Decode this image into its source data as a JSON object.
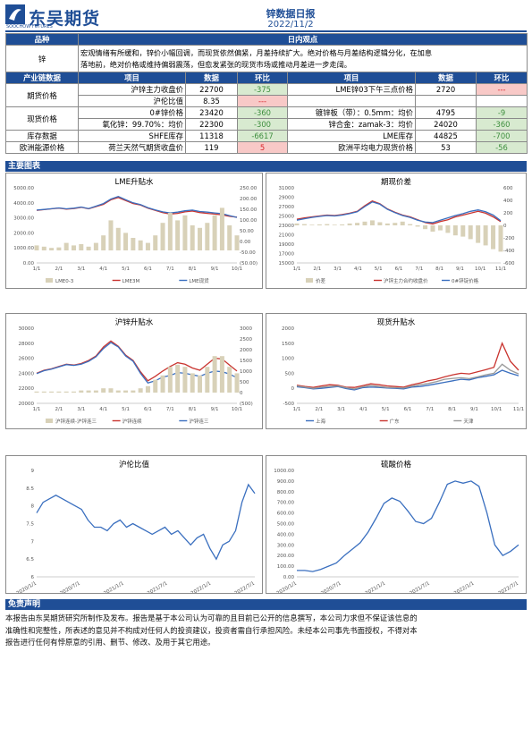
{
  "header": {
    "brand": "东吴期货",
    "brand_sub": "SOOCHOW FUTURES",
    "title": "锌数据日报",
    "date": "2022/11/2"
  },
  "view_table": {
    "col1": "品种",
    "col2": "日内观点",
    "variety": "锌",
    "view": [
      "宏观情绪有所缓和，锌价小幅回调，而现货依然偏紧，月差持续扩大。绝对价格与月差结构逻辑分化，在加息",
      "落地前，绝对价格或维持偏弱震荡，但愈发紧张的现货市场或推动月差进一步走阔。"
    ]
  },
  "data_table": {
    "headers": [
      "产业链数据",
      "项目",
      "数据",
      "环比",
      "项目",
      "数据",
      "环比"
    ],
    "rows": [
      {
        "group": "期货价格",
        "l_item": "沪锌主力收盘价",
        "l_val": "22700",
        "l_chg": "-375",
        "l_dir": "neg",
        "r_item": "LME锌03下午三点价格",
        "r_val": "2720",
        "r_chg": "---",
        "r_dir": "pos"
      },
      {
        "group": "",
        "l_item": "沪伦比值",
        "l_val": "8.35",
        "l_chg": "---",
        "l_dir": "pos",
        "r_item": "",
        "r_val": "",
        "r_chg": "",
        "r_dir": "none"
      },
      {
        "group": "现货价格",
        "l_item": "0#锌价格",
        "l_val": "23420",
        "l_chg": "-360",
        "l_dir": "neg",
        "r_item": "镀锌板（带）：0.5mm：均价",
        "r_val": "4795",
        "r_chg": "-9",
        "r_dir": "neg"
      },
      {
        "group": "",
        "l_item": "氧化锌：99.70%：均价",
        "l_val": "22300",
        "l_chg": "-300",
        "l_dir": "neg",
        "r_item": "锌合金：zamak-3：均价",
        "r_val": "24020",
        "r_chg": "-360",
        "r_dir": "neg"
      },
      {
        "group": "库存数据",
        "l_item": "SHFE库存",
        "l_val": "11318",
        "l_chg": "-6617",
        "l_dir": "neg",
        "r_item": "LME库存",
        "r_val": "44825",
        "r_chg": "-700",
        "r_dir": "neg"
      },
      {
        "group": "欧洲能源价格",
        "l_item": "荷兰天然气期货收盘价",
        "l_val": "119",
        "l_chg": "5",
        "l_dir": "pos",
        "r_item": "欧洲平均电力现货价格",
        "r_val": "53",
        "r_chg": "-56",
        "r_dir": "neg"
      }
    ]
  },
  "sections": {
    "charts": "主要图表",
    "disclaimer": "免责声明"
  },
  "disclaimer_text": [
    "本报告由东吴期货研究所制作及发布。报告是基于本公司认为可靠的且目前已公开的信息撰写，本公司力求但不保证该信息的",
    "准确性和完整性，所表述的意见并不构成对任何人的投资建议，投资者需自行承担风险。未经本公司事先书面授权，不得对本",
    "报告进行任何有悖原意的引用、删节、修改、及用于其它用途。"
  ],
  "colors": {
    "brand": "#1f4e96",
    "red": "#c9342f",
    "blue": "#3a6fbf",
    "bar": "#d8d1b8",
    "gray": "#9a9a9a"
  },
  "chart_data": [
    {
      "type": "bar+line",
      "title": "LME升贴水",
      "x_ticks": [
        "1/1",
        "2/1",
        "3/1",
        "4/1",
        "5/1",
        "6/1",
        "7/1",
        "8/1",
        "9/1",
        "10/1"
      ],
      "y_left_ticks": [
        "5000.00",
        "4000.00",
        "3000.00",
        "2000.00",
        "1000.00",
        "0.00"
      ],
      "y_right_ticks": [
        "250.00",
        "200.00",
        "150.00",
        "100.00",
        "50.00",
        "0.00",
        "-50.00",
        "(50.00)"
      ],
      "legend": [
        "LME0-3",
        "LME3M",
        "LME现货"
      ],
      "series": [
        {
          "name": "LME3M",
          "color": "#c9342f",
          "values": [
            3500,
            3550,
            3600,
            3650,
            3580,
            3620,
            3700,
            3600,
            3750,
            3900,
            4200,
            4350,
            4150,
            3950,
            3850,
            3650,
            3500,
            3350,
            3250,
            3300,
            3400,
            3450,
            3350,
            3300,
            3250,
            3200,
            3100,
            3050
          ]
        },
        {
          "name": "LME现货",
          "color": "#3a6fbf",
          "values": [
            3520,
            3560,
            3610,
            3660,
            3600,
            3640,
            3720,
            3620,
            3780,
            3950,
            4250,
            4420,
            4200,
            4000,
            3880,
            3680,
            3530,
            3400,
            3320,
            3380,
            3470,
            3520,
            3420,
            3380,
            3330,
            3280,
            3150,
            3030
          ]
        },
        {
          "name": "LME0-3",
          "color": "#d8d1b8",
          "values": [
            20,
            15,
            10,
            12,
            30,
            20,
            25,
            15,
            30,
            60,
            120,
            90,
            70,
            50,
            40,
            30,
            60,
            110,
            150,
            120,
            140,
            100,
            90,
            110,
            140,
            170,
            100,
            60
          ]
        }
      ]
    },
    {
      "type": "bar+line",
      "title": "期现价差",
      "x_ticks": [
        "1/1",
        "2/1",
        "3/1",
        "4/1",
        "5/1",
        "6/1",
        "7/1",
        "8/1",
        "9/1",
        "10/1",
        "11/1"
      ],
      "y_left_ticks": [
        "31000",
        "29000",
        "27000",
        "25000",
        "23000",
        "21000",
        "19000",
        "17000",
        "15000"
      ],
      "y_right_ticks": [
        "600",
        "400",
        "200",
        "0",
        "-200",
        "-400",
        "-600"
      ],
      "legend": [
        "价差",
        "沪锌主力合约收盘价",
        "0#锌锭价格"
      ],
      "series": [
        {
          "name": "沪锌主力合约收盘价",
          "color": "#c9342f",
          "values": [
            24300,
            24600,
            24800,
            25000,
            25200,
            25100,
            25300,
            25600,
            26000,
            27200,
            28200,
            27600,
            26500,
            25800,
            25200,
            24800,
            24200,
            23600,
            23300,
            23800,
            24200,
            24800,
            25200,
            25600,
            26000,
            25600,
            24800,
            23800
          ]
        },
        {
          "name": "0#锌锭价格",
          "color": "#3a6fbf",
          "values": [
            24100,
            24400,
            24700,
            24900,
            25100,
            25000,
            25200,
            25500,
            25900,
            27000,
            28000,
            27500,
            26400,
            25700,
            25100,
            24700,
            24100,
            23700,
            23600,
            24100,
            24600,
            25100,
            25500,
            26000,
            26300,
            25900,
            25200,
            24000
          ]
        },
        {
          "name": "价差",
          "color": "#d8d1b8",
          "values": [
            30,
            20,
            10,
            15,
            20,
            10,
            15,
            30,
            40,
            60,
            80,
            50,
            30,
            40,
            60,
            20,
            -20,
            -60,
            -100,
            -80,
            -120,
            -160,
            -180,
            -220,
            -280,
            -320,
            -380,
            -420
          ]
        }
      ]
    },
    {
      "type": "bar+line",
      "title": "沪锌升贴水",
      "x_ticks": [
        "1/1",
        "2/1",
        "3/1",
        "4/1",
        "5/1",
        "6/1",
        "7/1",
        "8/1",
        "9/1",
        "10/1"
      ],
      "y_left_ticks": [
        "30000",
        "28000",
        "26000",
        "24000",
        "22000",
        "20000"
      ],
      "y_right_ticks": [
        "3000",
        "2500",
        "2000",
        "1500",
        "1000",
        "500",
        "0",
        "(500)"
      ],
      "legend": [
        "沪锌连续-沪锌连三",
        "沪锌连续",
        "沪锌连三"
      ],
      "series": [
        {
          "name": "沪锌连续",
          "color": "#c9342f",
          "values": [
            24000,
            24400,
            24600,
            24900,
            25200,
            25100,
            25300,
            25700,
            26300,
            27500,
            28300,
            27600,
            26400,
            25700,
            24200,
            23000,
            23600,
            24300,
            24900,
            25400,
            25200,
            24700,
            24400,
            25200,
            26000,
            25900,
            25100,
            24300
          ]
        },
        {
          "name": "沪锌连三",
          "color": "#3a6fbf",
          "values": [
            23950,
            24350,
            24550,
            24850,
            25150,
            25050,
            25200,
            25600,
            26200,
            27300,
            28100,
            27500,
            26300,
            25600,
            24000,
            22700,
            23000,
            23500,
            23700,
            24100,
            24000,
            23800,
            23600,
            24000,
            24300,
            24200,
            23900,
            23400
          ]
        },
        {
          "name": "沪锌连续-沪锌连三",
          "color": "#d8d1b8",
          "values": [
            50,
            50,
            50,
            50,
            50,
            50,
            100,
            100,
            100,
            200,
            200,
            100,
            100,
            100,
            200,
            300,
            600,
            800,
            1200,
            1300,
            1200,
            900,
            800,
            1200,
            1700,
            1700,
            1200,
            900
          ]
        }
      ]
    },
    {
      "type": "line",
      "title": "现货升贴水",
      "x_ticks": [
        "1/1",
        "2/1",
        "3/1",
        "4/1",
        "5/1",
        "6/1",
        "7/1",
        "8/1",
        "9/1",
        "10/1",
        "11/1"
      ],
      "y_ticks": [
        "2000",
        "1500",
        "1000",
        "500",
        "0",
        "-500"
      ],
      "legend": [
        "上海",
        "广东",
        "天津"
      ],
      "series": [
        {
          "name": "上海",
          "color": "#3a6fbf",
          "values": [
            50,
            20,
            -20,
            0,
            30,
            60,
            -10,
            -50,
            20,
            40,
            30,
            10,
            0,
            -20,
            40,
            60,
            100,
            150,
            200,
            250,
            300,
            280,
            350,
            400,
            450,
            600,
            500,
            420
          ]
        },
        {
          "name": "广东",
          "color": "#c9342f",
          "values": [
            100,
            60,
            30,
            80,
            120,
            100,
            40,
            30,
            90,
            150,
            120,
            80,
            60,
            40,
            120,
            180,
            250,
            300,
            380,
            450,
            500,
            480,
            550,
            620,
            700,
            1500,
            900,
            600
          ]
        },
        {
          "name": "天津",
          "color": "#9a9a9a",
          "values": [
            80,
            40,
            0,
            40,
            60,
            80,
            20,
            -20,
            50,
            90,
            60,
            30,
            20,
            10,
            70,
            120,
            160,
            220,
            300,
            330,
            350,
            320,
            380,
            450,
            500,
            800,
            600,
            480
          ]
        }
      ]
    },
    {
      "type": "line",
      "title": "沪伦比值",
      "x_ticks": [
        "2020/1/1",
        "2020/7/1",
        "2021/1/1",
        "2021/7/1",
        "2022/1/1",
        "2022/7/1"
      ],
      "y_ticks": [
        "9",
        "8.5",
        "8",
        "7.5",
        "7",
        "6.5",
        "6"
      ],
      "series": [
        {
          "name": "沪伦比值",
          "color": "#3a6fbf",
          "values": [
            7.8,
            8.1,
            8.2,
            8.3,
            8.2,
            8.1,
            8.0,
            7.9,
            7.6,
            7.4,
            7.4,
            7.3,
            7.5,
            7.6,
            7.4,
            7.5,
            7.4,
            7.3,
            7.2,
            7.3,
            7.4,
            7.2,
            7.3,
            7.1,
            6.9,
            7.1,
            7.2,
            6.8,
            6.5,
            6.9,
            7.0,
            7.3,
            8.1,
            8.6,
            8.35
          ]
        }
      ]
    },
    {
      "type": "line",
      "title": "硫酸价格",
      "x_ticks": [
        "2020/1/1",
        "2020/7/1",
        "2021/1/1",
        "2021/7/1",
        "2022/1/1",
        "2022/7/1"
      ],
      "y_ticks": [
        "1000.00",
        "900.00",
        "800.00",
        "700.00",
        "600.00",
        "500.00",
        "400.00",
        "300.00",
        "200.00",
        "100.00",
        "0.00"
      ],
      "series": [
        {
          "name": "硫酸价格",
          "color": "#3a6fbf",
          "values": [
            60,
            60,
            50,
            70,
            100,
            130,
            200,
            260,
            320,
            420,
            550,
            690,
            740,
            710,
            620,
            520,
            500,
            550,
            700,
            870,
            900,
            880,
            900,
            850,
            600,
            300,
            200,
            240,
            300
          ]
        }
      ]
    }
  ]
}
